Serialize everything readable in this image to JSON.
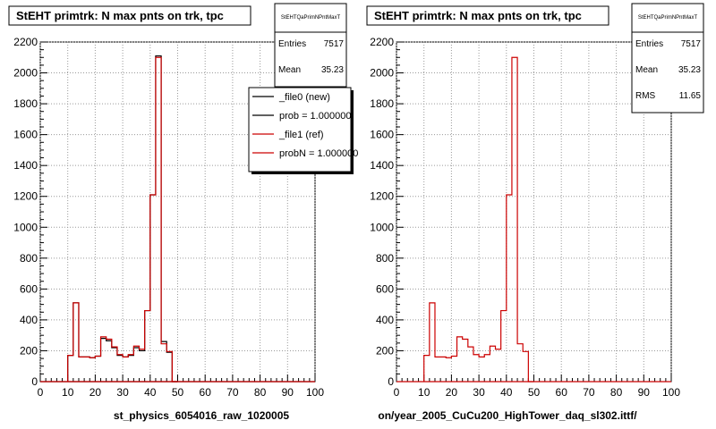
{
  "colors": {
    "new": "#000000",
    "ref": "#cc0000",
    "grid": "#9a9a9a"
  },
  "footer_text": "",
  "chart_data": [
    {
      "type": "bar",
      "title": "StEHT primtrk: N max pnts on trk, tpc",
      "xlabel": "st_physics_6054016_raw_1020005",
      "xlim": [
        0,
        100
      ],
      "ylim": [
        0,
        2200
      ],
      "xticks": [
        "0",
        "10",
        "20",
        "30",
        "40",
        "50",
        "60",
        "70",
        "80",
        "90",
        "100"
      ],
      "yticks": [
        "0",
        "200",
        "400",
        "600",
        "800",
        "1000",
        "1200",
        "1400",
        "1600",
        "1800",
        "2000",
        "2200"
      ],
      "bin_width": 2,
      "bin_edges_start": 10,
      "series": [
        {
          "name": "_file0 (new)",
          "values": [
            170,
            510,
            160,
            160,
            155,
            165,
            280,
            265,
            220,
            170,
            160,
            170,
            220,
            200,
            460,
            1210,
            2110,
            260,
            190,
            0
          ]
        },
        {
          "name": "_file1 (ref)",
          "values": [
            170,
            510,
            160,
            160,
            155,
            165,
            290,
            275,
            225,
            175,
            160,
            175,
            230,
            210,
            460,
            1210,
            2100,
            245,
            195,
            0
          ]
        }
      ],
      "stats": {
        "name": "StEHTQaPrimNPntMaxT",
        "rows": [
          {
            "label": "Entries",
            "value": "7517"
          },
          {
            "label": "Mean",
            "value": "35.23"
          }
        ]
      },
      "legend": {
        "placement": "top-right",
        "entries": [
          {
            "label": "_file0 (new)",
            "color": "#000000"
          },
          {
            "label": "prob = 1.000000",
            "color": "#000000"
          },
          {
            "label": "_file1 (ref)",
            "color": "#cc0000"
          },
          {
            "label": "probN = 1.000000",
            "color": "#cc0000"
          }
        ]
      }
    },
    {
      "type": "bar",
      "title": "StEHT primtrk: N max pnts on trk, tpc",
      "xlabel": "on/year_2005_CuCu200_HighTower_daq_sl302.ittf/",
      "xlim": [
        0,
        100
      ],
      "ylim": [
        0,
        2200
      ],
      "xticks": [
        "0",
        "10",
        "20",
        "30",
        "40",
        "50",
        "60",
        "70",
        "80",
        "90",
        "100"
      ],
      "yticks": [
        "0",
        "200",
        "400",
        "600",
        "800",
        "1000",
        "1200",
        "1400",
        "1600",
        "1800",
        "2000",
        "2200"
      ],
      "bin_width": 2,
      "bin_edges_start": 10,
      "series": [
        {
          "name": "_file1 (ref)",
          "values": [
            170,
            510,
            160,
            160,
            155,
            165,
            290,
            275,
            225,
            175,
            160,
            175,
            230,
            210,
            460,
            1210,
            2100,
            245,
            195,
            0
          ]
        }
      ],
      "stats": {
        "name": "StEHTQaPrimNPntMaxT",
        "rows": [
          {
            "label": "Entries",
            "value": "7517"
          },
          {
            "label": "Mean",
            "value": "35.23"
          },
          {
            "label": "RMS",
            "value": "11.65"
          }
        ]
      }
    }
  ]
}
